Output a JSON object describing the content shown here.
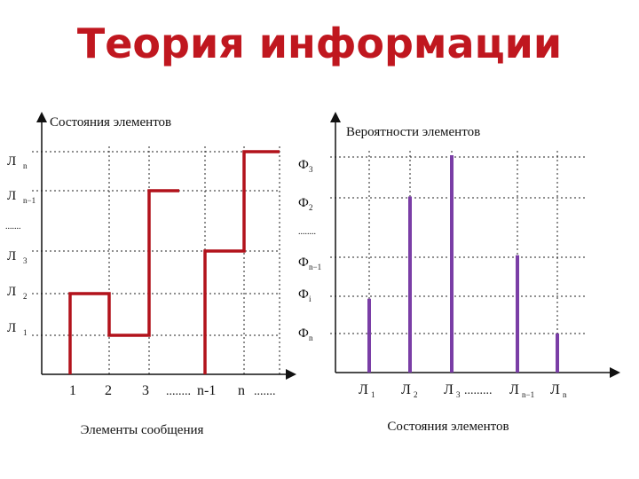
{
  "slide_title": "Теория информации",
  "colors": {
    "title": "#c0171f",
    "step_line": "#b2121b",
    "bars": "#7a3ea6"
  },
  "left_chart": {
    "y_axis_title": "Состояния элементов",
    "x_axis_title": "Элементы сообщения",
    "y_tick_labels": [
      "Л",
      "Л",
      ".......",
      "Л",
      "Л",
      "Л"
    ],
    "x_tick_labels": [
      "1",
      "2",
      "3",
      "........",
      "n-1",
      "n",
      "......."
    ]
  },
  "right_chart": {
    "y_axis_title": "Вероятности элементов",
    "x_axis_title": "Состояния элементов",
    "y_tick_labels": [
      "Ф",
      "Ф",
      "........",
      "Ф",
      "Ф",
      "Ф"
    ],
    "x_tick_labels": [
      "Л",
      "Л",
      "Л",
      ".........",
      "Л",
      "Л"
    ]
  },
  "chart_data": [
    {
      "type": "line",
      "step": true,
      "title": "",
      "xlabel": "Элементы сообщения",
      "ylabel": "Состояния элементов",
      "categories": [
        "1",
        "2",
        "3",
        "n-1",
        "n"
      ],
      "levels": [
        1,
        0,
        3,
        2,
        4
      ]
    },
    {
      "type": "bar",
      "title": "",
      "xlabel": "Состояния элементов",
      "ylabel": "Вероятности элементов",
      "values": [
        0.34,
        0.81,
        1.0,
        0.54,
        0.18
      ]
    }
  ]
}
